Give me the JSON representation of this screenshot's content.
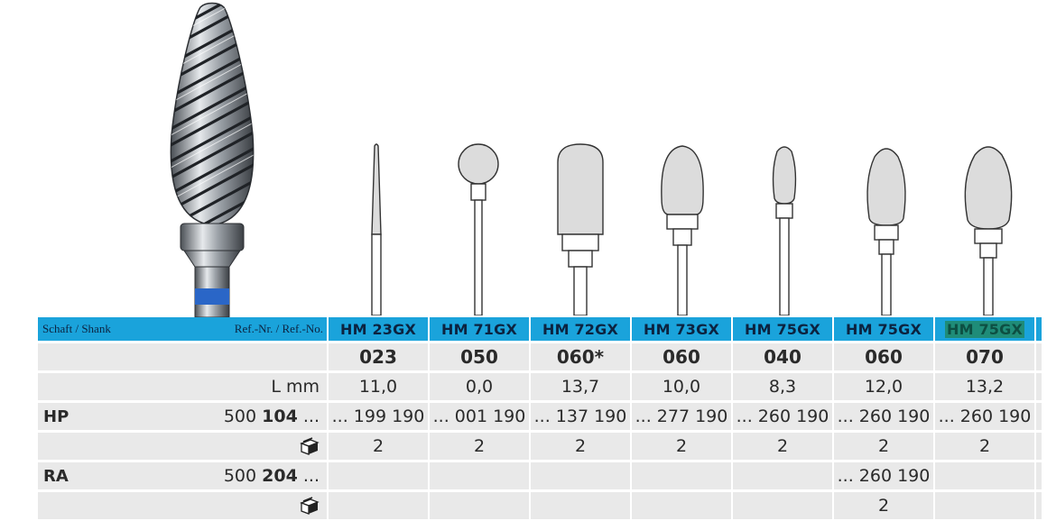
{
  "header": {
    "shank_label": "Schaft / Shank",
    "ref_label": "Ref.-Nr. / Ref.-No.",
    "codes": [
      "HM 23GX",
      "HM 71GX",
      "HM 72GX",
      "HM 73GX",
      "HM 75GX",
      "HM 75GX",
      "HM 75GX"
    ]
  },
  "sizes": [
    "023",
    "050",
    "060*",
    "060",
    "040",
    "060",
    "070"
  ],
  "length": {
    "label": "L mm",
    "values": [
      "11,0",
      "0,0",
      "13,7",
      "10,0",
      "8,3",
      "12,0",
      "13,2"
    ]
  },
  "hp": {
    "label": "HP",
    "ref_prefix": "500 ",
    "ref_bold": "104",
    "ref_suffix": " ...",
    "values": [
      "... 199 190",
      "... 001 190",
      "... 137 190",
      "... 277 190",
      "... 260 190",
      "... 260 190",
      "... 260 190"
    ],
    "pack_qty": [
      "2",
      "2",
      "2",
      "2",
      "2",
      "2",
      "2"
    ]
  },
  "ra": {
    "label": "RA",
    "ref_prefix": "500 ",
    "ref_bold": "204",
    "ref_suffix": " ...",
    "values": [
      "",
      "",
      "",
      "",
      "",
      "... 260 190",
      ""
    ],
    "pack_qty": [
      "",
      "",
      "",
      "",
      "",
      "2",
      ""
    ]
  },
  "colors": {
    "header_bg": "#1aa3db",
    "row_bg": "#e9e9e9",
    "highlight": "#1f8c78",
    "shank_band": "#2a66c7"
  },
  "icons": [
    "package-icon"
  ]
}
